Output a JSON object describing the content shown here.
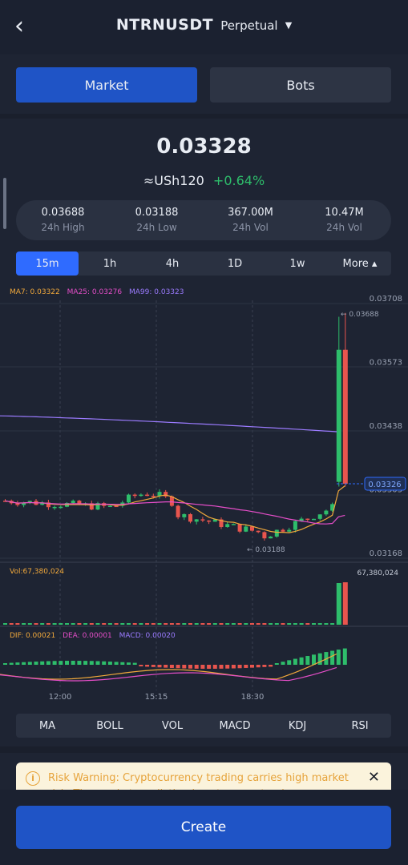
{
  "header": {
    "back_icon": "chevron-left-icon",
    "symbol": "NTRNUSDT",
    "contract": "Perpetual",
    "caret_icon": "caret-down-icon"
  },
  "segments": {
    "market": "Market",
    "bots": "Bots"
  },
  "ticker": {
    "price": "0.03328",
    "usd": "≈USh120",
    "change": "+0.64%"
  },
  "stats": [
    {
      "value": "0.03688",
      "label": "24h High"
    },
    {
      "value": "0.03188",
      "label": "24h Low"
    },
    {
      "value": "367.00M",
      "label": "24h Vol"
    },
    {
      "value": "10.47M",
      "label": "24h Vol"
    }
  ],
  "timeframes": [
    "15m",
    "1h",
    "4h",
    "1D",
    "1w",
    "More ▴"
  ],
  "chart": {
    "ma_legend": {
      "ma7": "MA7: 0.03322",
      "ma25": "MA25: 0.03276",
      "ma99": "MA99: 0.03323"
    },
    "price_axis": [
      "0.03708",
      "0.03573",
      "0.03438",
      "0.03303",
      "0.03168"
    ],
    "high_label": "← 0.03688",
    "low_label": "← 0.03188",
    "current_price": "0.03326",
    "time_axis": [
      "12:00",
      "15:15",
      "18:30"
    ],
    "vol_legend": "Vol:67,380,024",
    "vol_right": "67,380,024",
    "macd_legend": {
      "dif": "DIF: 0.00021",
      "dea": "DEA: 0.00001",
      "macd": "MACD: 0.00020"
    },
    "colors": {
      "up": "#2ebd6b",
      "down": "#e8554e",
      "ma7": "#f2a93b",
      "ma25": "#e64ec9",
      "ma99": "#9b7bff"
    }
  },
  "indicators": [
    "MA",
    "BOLL",
    "VOL",
    "MACD",
    "KDJ",
    "RSI"
  ],
  "risk": {
    "icon": "info-icon",
    "text": "Risk Warning: Cryptocurrency trading carries high market risk. The market prediction is not guaranteed.",
    "close_icon": "close-icon"
  },
  "cta": {
    "create": "Create"
  }
}
